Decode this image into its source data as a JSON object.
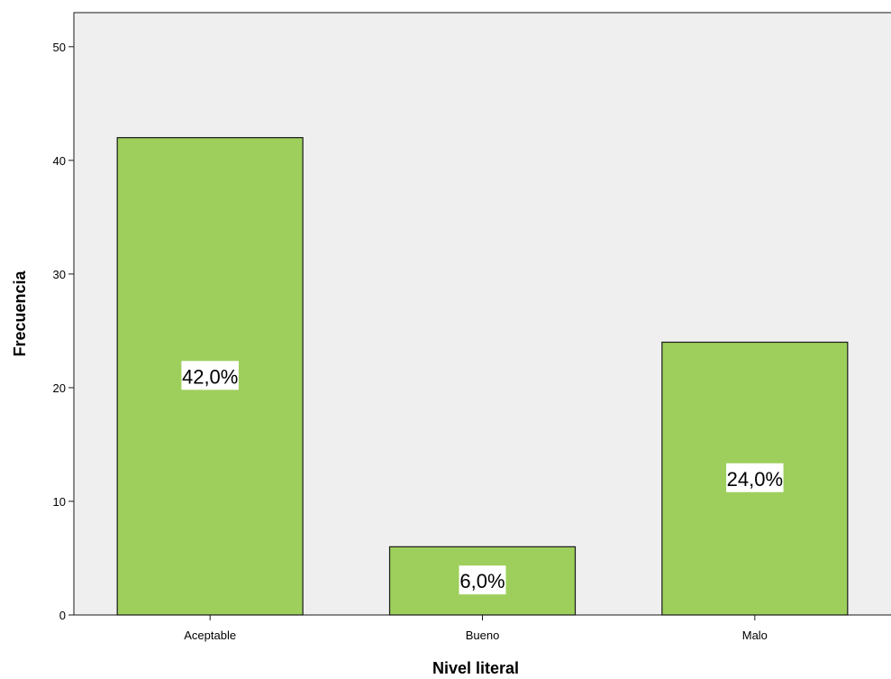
{
  "chart_data": {
    "type": "bar",
    "title": "",
    "xlabel": "Nivel literal",
    "ylabel": "Frecuencia",
    "categories": [
      "Aceptable",
      "Bueno",
      "Malo"
    ],
    "values": [
      42,
      6,
      24
    ],
    "data_labels": [
      "42,0%",
      "6,0%",
      "24,0%"
    ],
    "ylim": [
      0,
      53
    ],
    "yticks": [
      "0",
      "10",
      "20",
      "30",
      "40",
      "50"
    ],
    "ytick_values": [
      0,
      10,
      20,
      30,
      40,
      50
    ],
    "grid": false,
    "legend": "none",
    "colors": {
      "bar": "#9ecf5c",
      "bar_border": "#1a1a1a",
      "plot_background": "#efefef",
      "label_box": "#ffffff"
    }
  }
}
